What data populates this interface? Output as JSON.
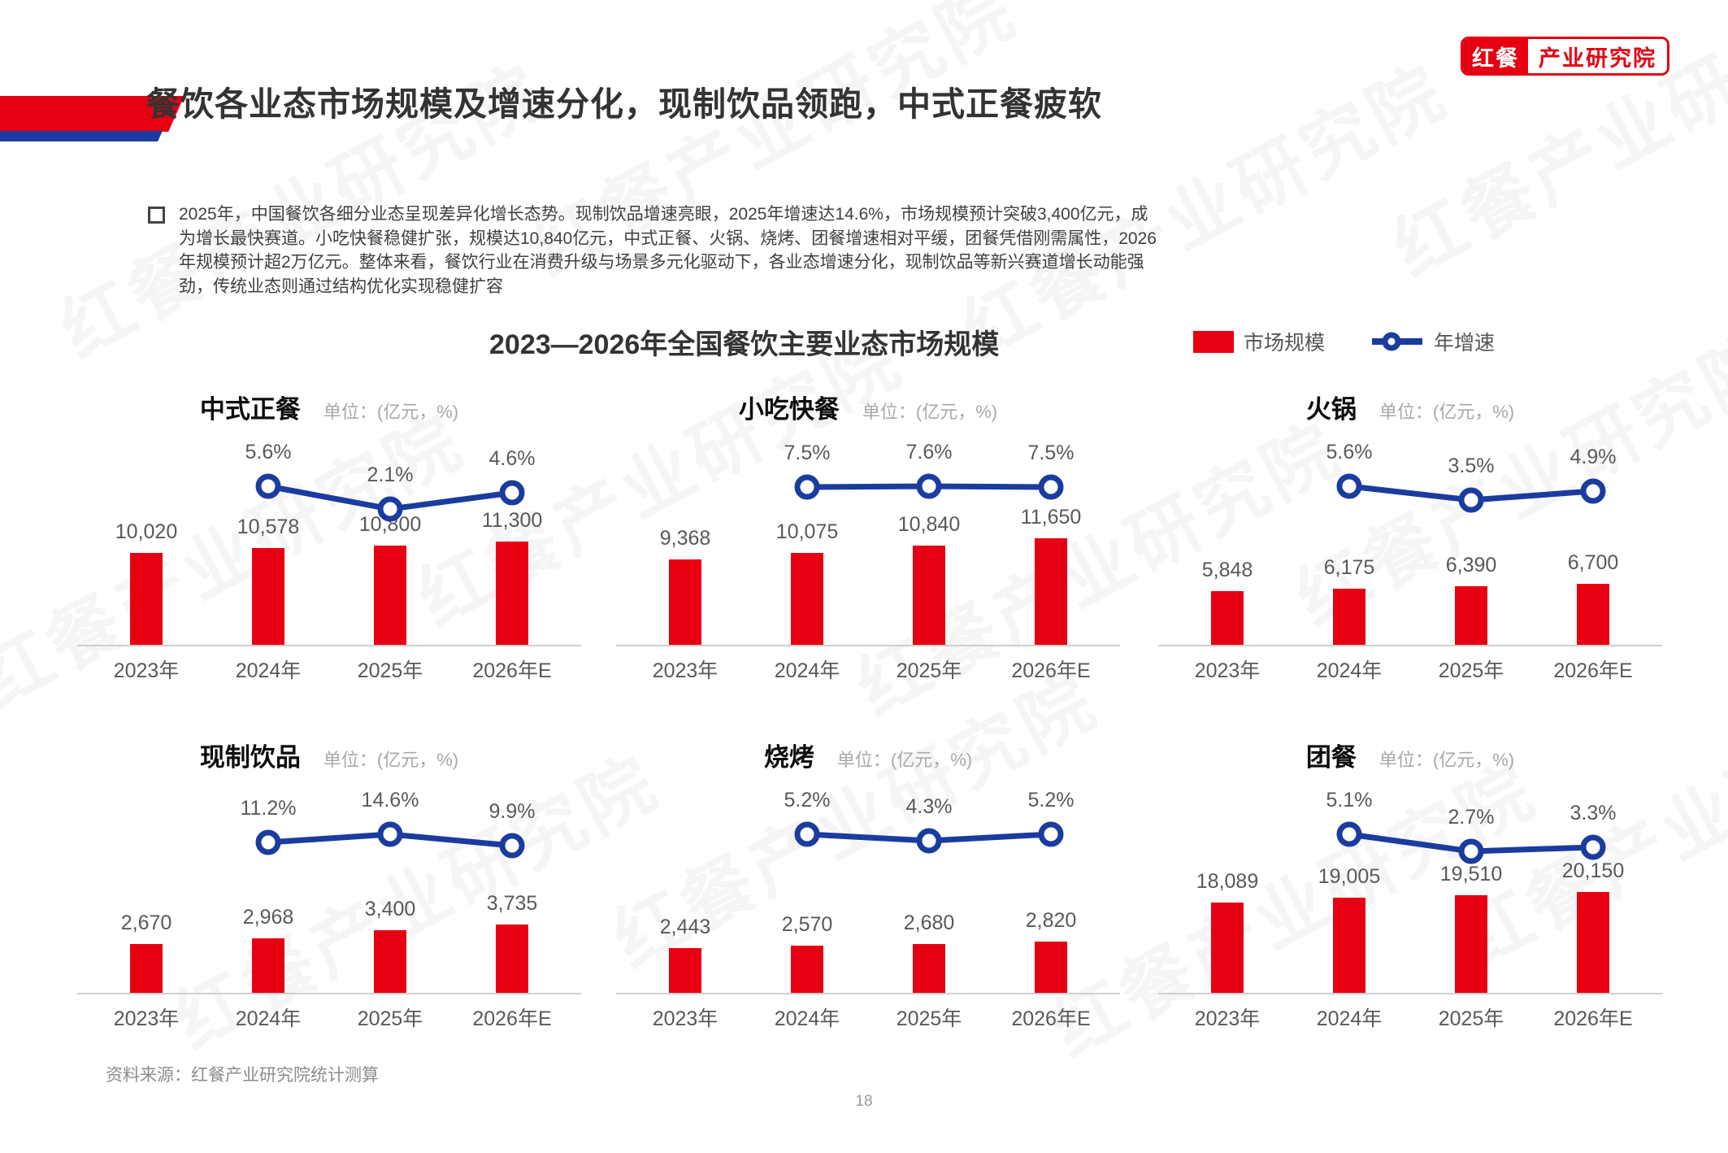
{
  "page": {
    "title": "餐饮各业态市场规模及增速分化，现制饮品领跑，中式正餐疲软",
    "bullet_text": "2025年，中国餐饮各细分业态呈现差异化增长态势。现制饮品增速亮眼，2025年增速达14.6%，市场规模预计突破3,400亿元，成为增长最快赛道。小吃快餐稳健扩张，规模达10,840亿元，中式正餐、火锅、烧烤、团餐增速相对平缓，团餐凭借刚需属性，2026年规模预计超2万亿元。整体来看，餐饮行业在消费升级与场景多元化驱动下，各业态增速分化，现制饮品等新兴赛道增长动能强劲，传统业态则通过结构优化实现稳健扩容",
    "source": "资料来源：红餐产业研究院统计测算",
    "page_number": "18",
    "watermark": "红餐产业研究院"
  },
  "logo": {
    "brand": "红餐",
    "suffix": "产业研究院"
  },
  "colors": {
    "accent_red": "#E60012",
    "line_blue": "#1B3C9E",
    "baseline_gray": "#CFCFCF"
  },
  "chart_data": {
    "type": "bar",
    "title": "2023—2026年全国餐饮主要业态市场规模",
    "legend": {
      "bar_label": "市场规模",
      "line_label": "年增速",
      "position": "top-right"
    },
    "categories": [
      "2023年",
      "2024年",
      "2025年",
      "2026年E"
    ],
    "growth_applies_to": [
      "2024年",
      "2025年",
      "2026年E"
    ],
    "charts": [
      {
        "id": "chinese-dinner",
        "title": "中式正餐",
        "unit": "单位：(亿元，%)",
        "values": [
          10020,
          10578,
          10800,
          11300
        ],
        "value_labels": [
          "10,020",
          "10,578",
          "10,800",
          "11,300"
        ],
        "growth_pct": [
          5.6,
          2.1,
          4.6
        ],
        "growth_labels": [
          "5.6%",
          "2.1%",
          "4.6%"
        ],
        "ylim": [
          0,
          12000
        ]
      },
      {
        "id": "snack-fast-food",
        "title": "小吃快餐",
        "unit": "单位：(亿元，%)",
        "values": [
          9368,
          10075,
          10840,
          11650
        ],
        "value_labels": [
          "9,368",
          "10,075",
          "10,840",
          "11,650"
        ],
        "growth_pct": [
          7.5,
          7.6,
          7.5
        ],
        "growth_labels": [
          "7.5%",
          "7.6%",
          "7.5%"
        ],
        "ylim": [
          0,
          12000
        ]
      },
      {
        "id": "hotpot",
        "title": "火锅",
        "unit": "单位：(亿元，%)",
        "values": [
          5848,
          6175,
          6390,
          6700
        ],
        "value_labels": [
          "5,848",
          "6,175",
          "6,390",
          "6,700"
        ],
        "growth_pct": [
          5.6,
          3.5,
          4.9
        ],
        "growth_labels": [
          "5.6%",
          "3.5%",
          "4.9%"
        ],
        "ylim": [
          0,
          12000
        ]
      },
      {
        "id": "fresh-drinks",
        "title": "现制饮品",
        "unit": "单位：(亿元，%)",
        "values": [
          2670,
          2968,
          3400,
          3735
        ],
        "value_labels": [
          "2,670",
          "2,968",
          "3,400",
          "3,735"
        ],
        "growth_pct": [
          11.2,
          14.6,
          9.9
        ],
        "growth_labels": [
          "11.2%",
          "14.6%",
          "9.9%"
        ],
        "ylim": [
          0,
          6000
        ]
      },
      {
        "id": "bbq",
        "title": "烧烤",
        "unit": "单位：(亿元，%)",
        "values": [
          2443,
          2570,
          2680,
          2820
        ],
        "value_labels": [
          "2,443",
          "2,570",
          "2,680",
          "2,820"
        ],
        "growth_pct": [
          5.2,
          4.3,
          5.2
        ],
        "growth_labels": [
          "5.2%",
          "4.3%",
          "5.2%"
        ],
        "ylim": [
          0,
          6000
        ]
      },
      {
        "id": "group-catering",
        "title": "团餐",
        "unit": "单位：(亿元，%)",
        "values": [
          18089,
          19005,
          19510,
          20150
        ],
        "value_labels": [
          "18,089",
          "19,005",
          "19,510",
          "20,150"
        ],
        "growth_pct": [
          5.1,
          2.7,
          3.3
        ],
        "growth_labels": [
          "5.1%",
          "2.7%",
          "3.3%"
        ],
        "ylim": [
          0,
          22000
        ]
      }
    ]
  }
}
